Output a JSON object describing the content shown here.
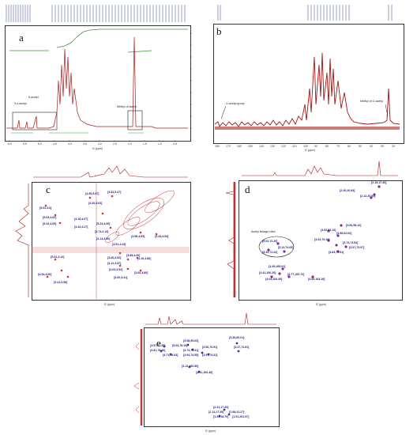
{
  "panels": {
    "a": {
      "letter": "a",
      "xlabel": "f1 (ppm)",
      "annotations": [
        "3-o-acetyl",
        "6-acetyl",
        "Methyl of acetyl"
      ],
      "xticks": [
        "6.0",
        "5.5",
        "5.0",
        "4.5",
        "4.0",
        "3.5",
        "3.0",
        "2.5",
        "2.0",
        "1.5",
        "1.0",
        "0.5"
      ]
    },
    "b": {
      "letter": "b",
      "xlabel": "f1 (ppm)",
      "annotations": [
        "O-acetyl group",
        "Methyl of O-acetyl"
      ],
      "xticks": [
        "180",
        "170",
        "160",
        "150",
        "140",
        "130",
        "120",
        "110",
        "100",
        "90",
        "80",
        "70",
        "60",
        "50",
        "40",
        "30",
        "20"
      ]
    },
    "c": {
      "letter": "c",
      "xlabel": "f2 (ppm)",
      "labels": [
        "[4.95,5.07]",
        "[4.52,5.37]",
        "[4.20,5.03]",
        "[5.02,4.6]",
        "[5.03,4.52]",
        "[4.18,4.07]",
        "[5.42,4.05]",
        "[4.44,4.27]",
        "[5.24,4.00]",
        "[3.74,4.13]",
        "[4.14,3.96]",
        "[3.58,4.53]",
        "[3.34,4.53]",
        "[4.51,4.23]",
        "[4.06,4.52]",
        "[3.85,4.30]",
        "[4.94,4.06]",
        "[5.02,3.12]",
        "[4.12,3.87]",
        "[4.16,3.80]",
        "[4.03,3.92]",
        "[4.60,3.41]",
        "[3.60,3.80]",
        "[3.41,3.58]"
      ]
    },
    "d": {
      "letter": "d",
      "xlabel": "f2 (ppm)",
      "annotation": "Acetyl linkage sites",
      "labels": [
        "[2.19,17.40]",
        "[2.20,20.94]",
        "[2.12,20.94]",
        "[3.66,58.12]",
        "[3.92,63.10]",
        "[3.58,62.02]",
        "[4.03,70.16]",
        "[3.74,74.54]",
        "[3.57,73.97]",
        "[3.83,77.51]",
        "[5.02,72.26]",
        "[5.33,72.22]",
        "[5.12,74.05]",
        "[4.39,105.01]",
        "[4.41,100.25]",
        "[4.77,100.72]",
        "[4.04,100.39]",
        "[4.53,103.19]"
      ]
    },
    "e": {
      "letter": "e",
      "xlabel": "f2 (ppm)",
      "labels": [
        "[3.57,77.35]",
        "[3.58,99.03]",
        "[3.39,80.01]",
        "[4.81,78.40]",
        "[5.04,78.19]",
        "[4.71,78.03]",
        "[3.74,74.31]",
        "[3.94,74.55]",
        "[3.56,70.91]",
        "[3.57,74.31]",
        "[3.37,74.51]",
        "[4.13,100.80]",
        "[4.41,100.40]",
        "[2.31,17.40]",
        "[2.12,17.35]",
        "[1.98,21.27]",
        "[1.94,18.70]",
        "[1.91,201.97]"
      ]
    }
  }
}
